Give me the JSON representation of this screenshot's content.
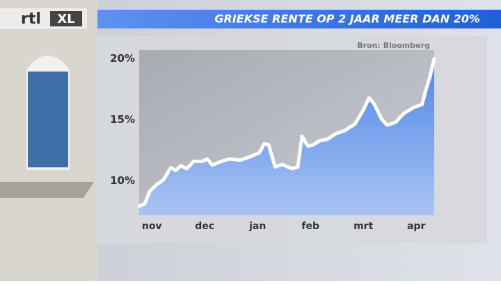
{
  "logo": {
    "left": "rtl",
    "right": "XL"
  },
  "chart_data": {
    "type": "area",
    "title": "GRIEKSE RENTE OP 2 JAAR MEER DAN 20%",
    "source": "Bron: Bloomberg",
    "x": [
      -0.24,
      -0.14,
      -0.04,
      0.09,
      0.22,
      0.36,
      0.45,
      0.55,
      0.66,
      0.79,
      0.95,
      1.05,
      1.14,
      1.32,
      1.47,
      1.67,
      1.87,
      2.03,
      2.13,
      2.21,
      2.33,
      2.46,
      2.66,
      2.76,
      2.84,
      2.95,
      3.05,
      3.18,
      3.32,
      3.47,
      3.64,
      3.84,
      4.0,
      4.11,
      4.21,
      4.34,
      4.45,
      4.61,
      4.76,
      4.95,
      5.11,
      5.18,
      5.26,
      5.34
    ],
    "values": [
      7.95,
      8.1,
      9.15,
      9.7,
      10.1,
      11.1,
      10.85,
      11.25,
      11.0,
      11.6,
      11.6,
      11.8,
      11.3,
      11.6,
      11.8,
      11.7,
      12.0,
      12.3,
      13.05,
      12.95,
      11.15,
      11.35,
      11.0,
      11.15,
      13.65,
      12.85,
      12.95,
      13.3,
      13.4,
      13.85,
      14.1,
      14.65,
      15.8,
      16.8,
      16.25,
      15.1,
      14.55,
      14.8,
      15.5,
      16.0,
      16.25,
      17.4,
      18.5,
      20.0
    ],
    "line_color": "#ffffff",
    "color": "#4f86e8",
    "xlim": [
      -0.24,
      5.34
    ],
    "xticks": [
      {
        "value": 0,
        "label": "nov"
      },
      {
        "value": 1,
        "label": "dec"
      },
      {
        "value": 2,
        "label": "jan"
      },
      {
        "value": 3,
        "label": "feb"
      },
      {
        "value": 4,
        "label": "mrt"
      },
      {
        "value": 5,
        "label": "apr"
      }
    ],
    "ylim": [
      7.2,
      20.7
    ],
    "yticks": [
      {
        "value": 10,
        "label": "10%"
      },
      {
        "value": 15,
        "label": "15%"
      },
      {
        "value": 20,
        "label": "20%"
      }
    ]
  }
}
